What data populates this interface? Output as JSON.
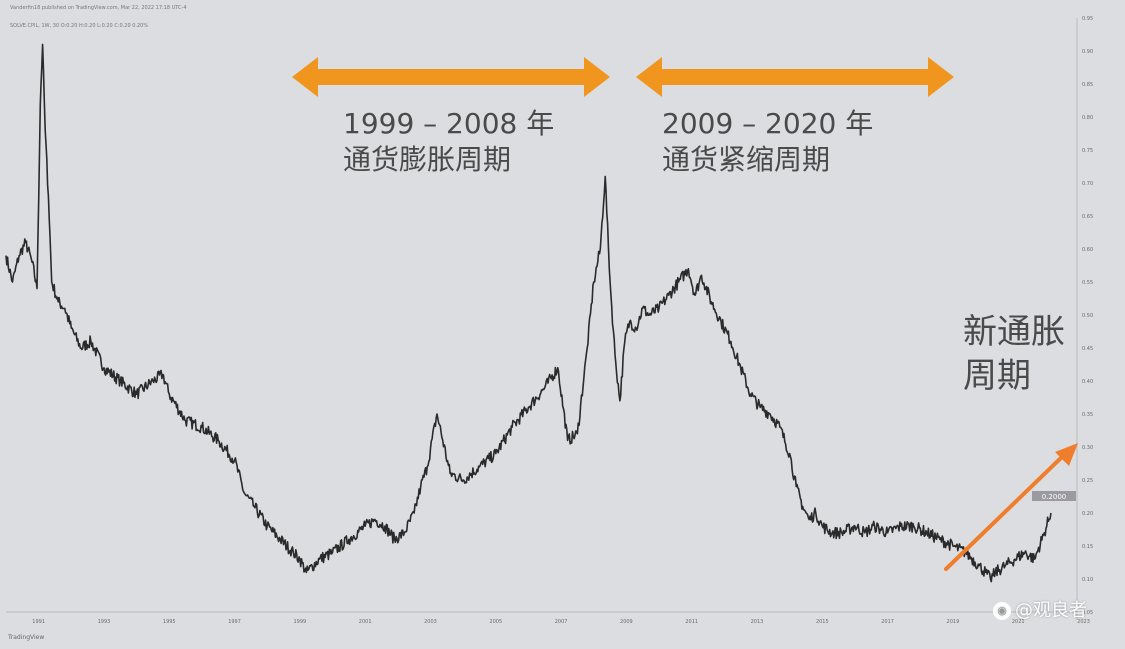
{
  "header": {
    "publisher_line": "Vanderfin18 published on TradingView.com, Mar 22, 2022 17:18 UTC-4",
    "legend_line": "SOLVE.CPIL, 1W, 30 O:0.20 H:0.20 L:0.20 C:0.20 0.20%",
    "footer_logo": "TradingView"
  },
  "annotations": {
    "period1_line1": "1999 – 2008 年",
    "period1_line2": "通货膨胀周期",
    "period2_line1": "2009 – 2020 年",
    "period2_line2": "通货紧缩周期",
    "new_line1": "新通胀",
    "new_line2": "周期"
  },
  "watermark": {
    "icon": "weibo-icon",
    "text": "@观良者"
  },
  "colors": {
    "background": "#dcdde1",
    "series": "#2a2a2a",
    "arrows": "#f0951e",
    "trend_arrow": "#ef7d2c",
    "text": "#4a4a4a"
  },
  "chart_data": {
    "type": "line",
    "title": "",
    "xlabel": "",
    "ylabel": "",
    "xlim": [
      1990.0,
      2022.8
    ],
    "ylim": [
      0.05,
      0.95
    ],
    "x_ticks": [
      "1991",
      "1993",
      "1995",
      "1997",
      "1999",
      "2001",
      "2003",
      "2005",
      "2007",
      "2009",
      "2011",
      "2013",
      "2015",
      "2017",
      "2019",
      "2021",
      "2023"
    ],
    "y_ticks": [
      "0.95",
      "0.90",
      "0.85",
      "0.80",
      "0.75",
      "0.70",
      "0.65",
      "0.60",
      "0.55",
      "0.50",
      "0.45",
      "0.40",
      "0.35",
      "0.30",
      "0.25",
      "0.20",
      "0.15",
      "0.10",
      "0.05"
    ],
    "last_value_label": "0.2000",
    "series": [
      {
        "x": [
          1990.0,
          1990.2,
          1990.4,
          1990.6,
          1990.8,
          1990.95,
          1991.05,
          1991.12,
          1991.2,
          1991.3,
          1991.4,
          1991.6,
          1991.8,
          1992.0,
          1992.3,
          1992.6,
          1993.0,
          1993.5,
          1994.0,
          1994.5,
          1994.8,
          1995.0,
          1995.5,
          1996.0,
          1996.5,
          1997.0,
          1997.3,
          1997.6,
          1998.0,
          1998.4,
          1998.8,
          1999.0,
          1999.2,
          1999.6,
          2000.0,
          2000.5,
          2001.0,
          2001.3,
          2001.6,
          2001.9,
          2002.2,
          2002.5,
          2002.7,
          2002.9,
          2003.2,
          2003.6,
          2004.0,
          2004.5,
          2005.0,
          2005.5,
          2006.0,
          2006.5,
          2006.9,
          2007.2,
          2007.5,
          2007.8,
          2008.0,
          2008.2,
          2008.35,
          2008.5,
          2008.65,
          2008.8,
          2008.95,
          2009.1,
          2009.3,
          2009.5,
          2009.7,
          2010.0,
          2010.3,
          2010.6,
          2010.9,
          2011.1,
          2011.3,
          2011.6,
          2011.9,
          2012.2,
          2012.5,
          2012.8,
          2013.1,
          2013.4,
          2013.7,
          2014.0,
          2014.2,
          2014.4,
          2014.6,
          2014.8,
          2015.0,
          2015.3,
          2015.6,
          2016.0,
          2016.3,
          2016.6,
          2017.0,
          2017.4,
          2017.8,
          2018.2,
          2018.6,
          2019.0,
          2019.4,
          2019.8,
          2020.0,
          2020.15,
          2020.3,
          2020.6,
          2020.9,
          2021.2,
          2021.5,
          2021.8,
          2022.0
        ],
        "y": [
          0.59,
          0.55,
          0.59,
          0.61,
          0.58,
          0.54,
          0.82,
          0.91,
          0.78,
          0.68,
          0.55,
          0.52,
          0.51,
          0.48,
          0.45,
          0.46,
          0.42,
          0.4,
          0.38,
          0.4,
          0.41,
          0.38,
          0.34,
          0.33,
          0.31,
          0.28,
          0.23,
          0.21,
          0.18,
          0.16,
          0.14,
          0.13,
          0.11,
          0.13,
          0.14,
          0.16,
          0.18,
          0.19,
          0.18,
          0.16,
          0.17,
          0.2,
          0.24,
          0.27,
          0.35,
          0.26,
          0.25,
          0.27,
          0.29,
          0.33,
          0.36,
          0.39,
          0.42,
          0.31,
          0.32,
          0.45,
          0.55,
          0.6,
          0.71,
          0.55,
          0.44,
          0.37,
          0.46,
          0.49,
          0.48,
          0.51,
          0.5,
          0.51,
          0.53,
          0.55,
          0.57,
          0.53,
          0.56,
          0.52,
          0.49,
          0.46,
          0.42,
          0.38,
          0.36,
          0.35,
          0.33,
          0.29,
          0.24,
          0.21,
          0.19,
          0.2,
          0.18,
          0.17,
          0.17,
          0.18,
          0.17,
          0.18,
          0.17,
          0.18,
          0.18,
          0.17,
          0.16,
          0.15,
          0.14,
          0.12,
          0.11,
          0.1,
          0.11,
          0.12,
          0.13,
          0.14,
          0.13,
          0.17,
          0.2
        ]
      }
    ]
  }
}
